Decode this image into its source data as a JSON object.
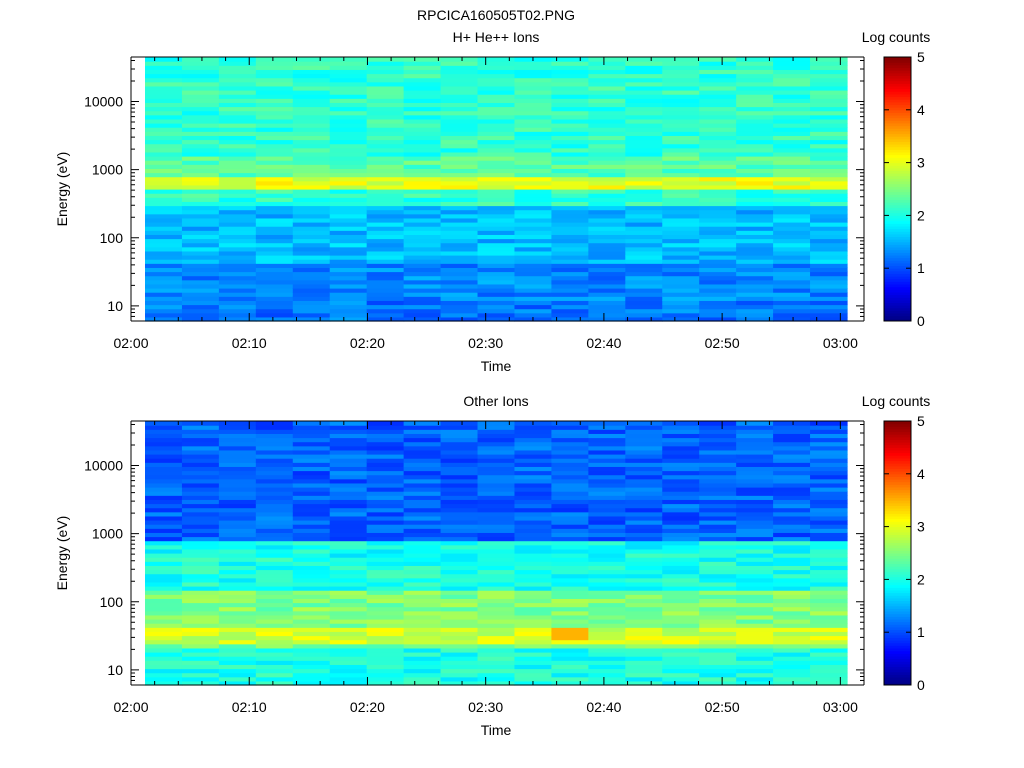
{
  "figure_title": "RPCICA160505T02.PNG",
  "chart_data": [
    {
      "type": "heatmap",
      "title": "H+ He++ Ions",
      "xlabel": "Time",
      "ylabel": "Energy (eV)",
      "colorbar_label": "Log counts",
      "x_range": [
        "02:00",
        "03:02"
      ],
      "x_ticks": [
        "02:00",
        "02:10",
        "02:20",
        "02:30",
        "02:40",
        "02:50",
        "03:00"
      ],
      "y_scale": "log",
      "y_range": [
        6,
        45000
      ],
      "y_ticks": [
        10,
        100,
        1000,
        10000
      ],
      "y_tick_labels": [
        "10",
        "100",
        "1000",
        "10000"
      ],
      "colorbar_range": [
        0,
        5
      ],
      "colorbar_ticks": [
        "0",
        "1",
        "2",
        "3",
        "4",
        "5"
      ],
      "colormap": "jet",
      "time_bins": 19,
      "energy_bands": [
        {
          "energy_range_eV": [
            6,
            12
          ],
          "log_counts": 1.2
        },
        {
          "energy_range_eV": [
            12,
            40
          ],
          "log_counts": 1.3
        },
        {
          "energy_range_eV": [
            40,
            300
          ],
          "log_counts": 1.55
        },
        {
          "energy_range_eV": [
            300,
            500
          ],
          "log_counts": 2.1
        },
        {
          "energy_range_eV": [
            500,
            800
          ],
          "log_counts": 3.0
        },
        {
          "energy_range_eV": [
            800,
            1600
          ],
          "log_counts": 2.3
        },
        {
          "energy_range_eV": [
            1600,
            45000
          ],
          "log_counts": 2.1
        }
      ]
    },
    {
      "type": "heatmap",
      "title": "Other Ions",
      "xlabel": "Time",
      "ylabel": "Energy (eV)",
      "colorbar_label": "Log counts",
      "x_range": [
        "02:00",
        "03:02"
      ],
      "x_ticks": [
        "02:00",
        "02:10",
        "02:20",
        "02:30",
        "02:40",
        "02:50",
        "03:00"
      ],
      "y_scale": "log",
      "y_range": [
        6,
        45000
      ],
      "y_ticks": [
        10,
        100,
        1000,
        10000
      ],
      "y_tick_labels": [
        "10",
        "100",
        "1000",
        "10000"
      ],
      "colorbar_range": [
        0,
        5
      ],
      "colorbar_ticks": [
        "0",
        "1",
        "2",
        "3",
        "4",
        "5"
      ],
      "colormap": "jet",
      "time_bins": 19,
      "energy_bands": [
        {
          "energy_range_eV": [
            6,
            20
          ],
          "log_counts": 2.0
        },
        {
          "energy_range_eV": [
            25,
            45
          ],
          "log_counts": 2.9
        },
        {
          "energy_range_eV": [
            45,
            150
          ],
          "log_counts": 2.5
        },
        {
          "energy_range_eV": [
            150,
            450
          ],
          "log_counts": 2.0
        },
        {
          "energy_range_eV": [
            450,
            800
          ],
          "log_counts": 1.95
        },
        {
          "energy_range_eV": [
            800,
            45000
          ],
          "log_counts": 1.1
        }
      ],
      "peak_value": 3.5
    }
  ]
}
